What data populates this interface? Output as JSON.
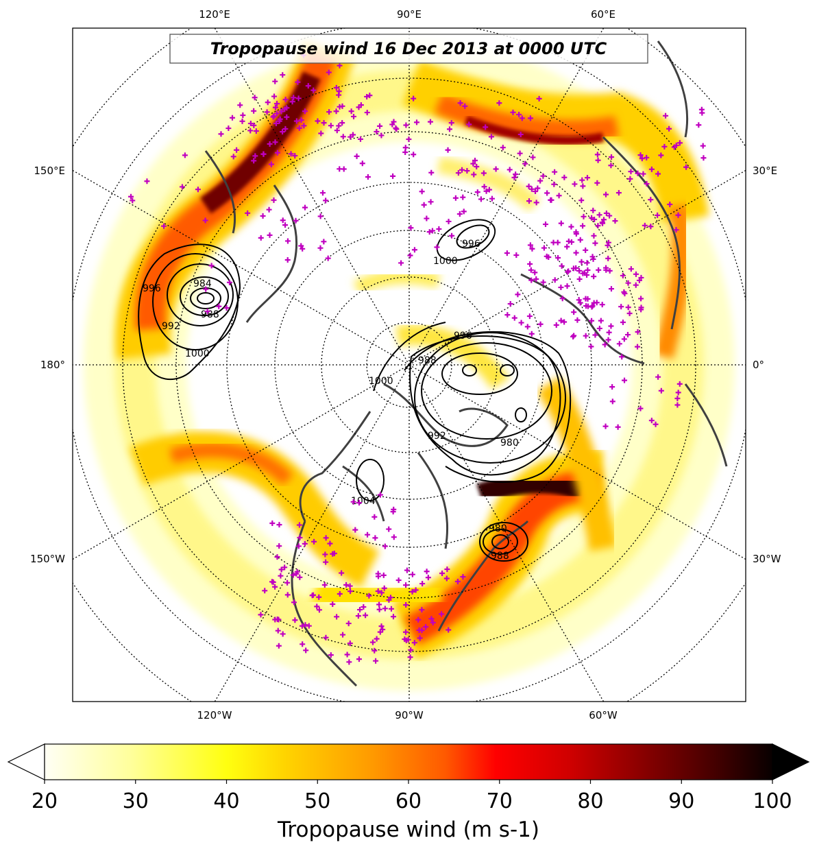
{
  "title": "Tropopause wind 16 Dec 2013 at 0000 UTC",
  "longitude_labels": {
    "top": [
      "120°E",
      "90°E",
      "60°E"
    ],
    "left": [
      "150°E",
      "180°",
      "150°W"
    ],
    "right": [
      "30°E",
      "0°",
      "30°W"
    ],
    "bottom": [
      "120°W",
      "90°W",
      "60°W"
    ]
  },
  "colorbar": {
    "label": "Tropopause wind (m s-1)",
    "ticks": [
      "20",
      "30",
      "40",
      "50",
      "60",
      "70",
      "80",
      "90",
      "100"
    ],
    "min": 20,
    "max": 100,
    "extend": "both",
    "colormap": "hot_r"
  },
  "contour_labels": [
    "984",
    "988",
    "992",
    "996",
    "1000",
    "1000",
    "996",
    "988",
    "980",
    "996",
    "1000",
    "992",
    "980",
    "1004",
    "988"
  ],
  "colors": {
    "station_marker": "#c000c0",
    "coastline": "#404040",
    "contour": "#000000"
  }
}
